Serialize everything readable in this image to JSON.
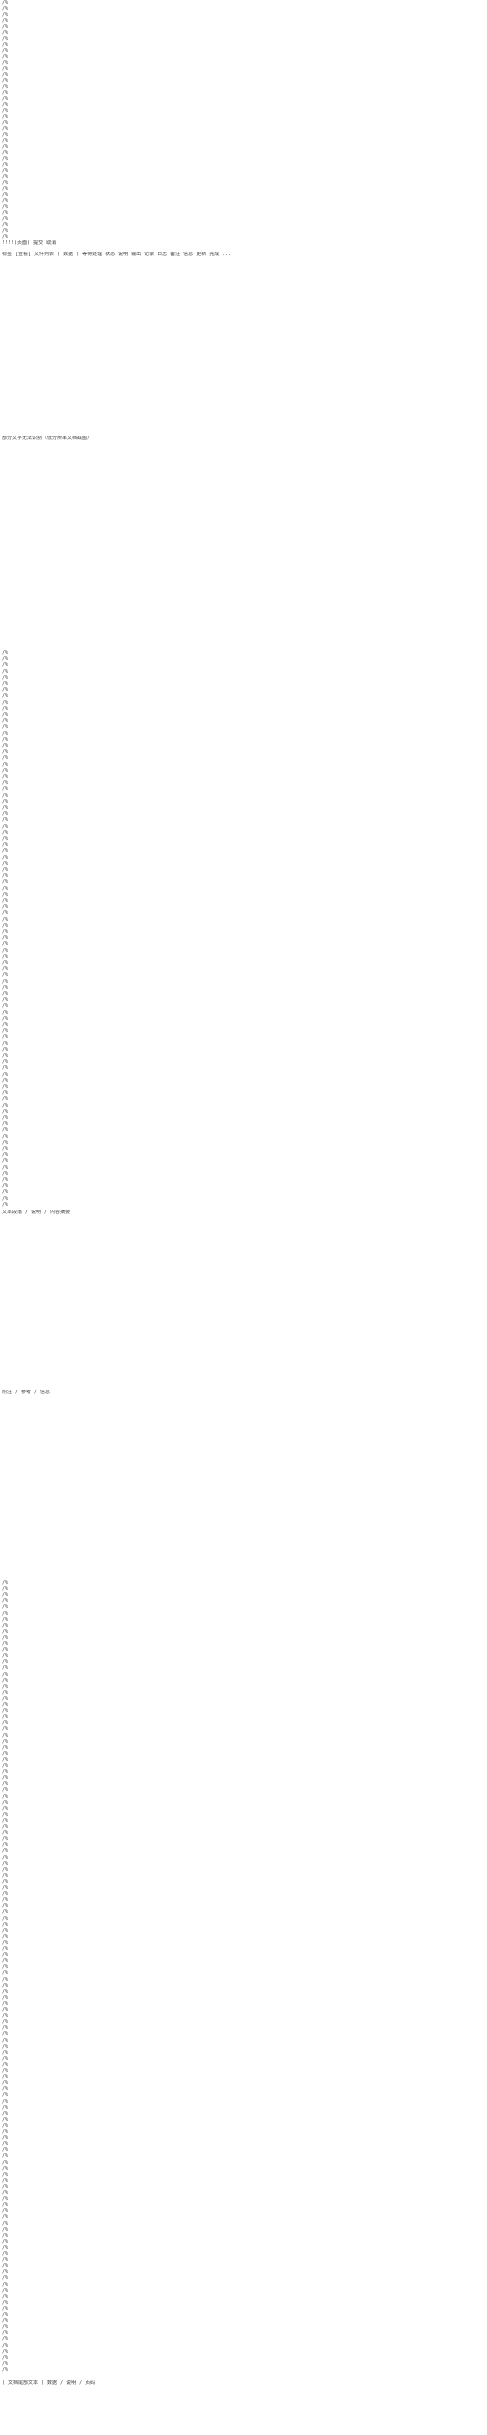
{
  "document": {
    "title_line": "!!!!(页面)  提交  取消",
    "marker_line": "/%",
    "block1": "标签 [查看] 文件列表 ( 数据 ) 等待处理 状态 说明 输出 记录 日志 备注 信息 更新 完成 ...",
    "block2": "部分文字无法识别（低分辨率文档截图）",
    "block3": "文本段落 / 说明 / 内容摘要",
    "block4": "附注 / 参考 / 信息",
    "footer_line": "( 文档尾部文本 ) 数据 / 说明 / 页码"
  }
}
